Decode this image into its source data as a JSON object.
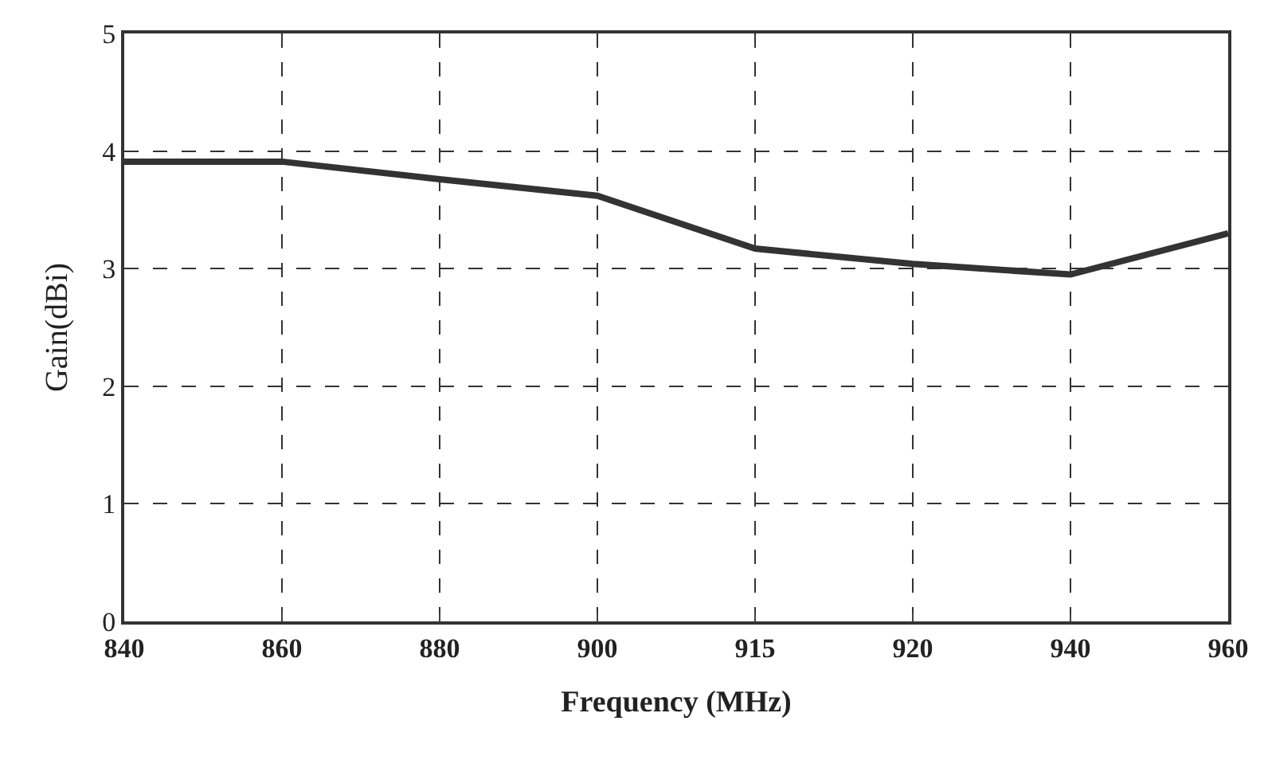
{
  "chart_data": {
    "type": "line",
    "xlabel": "Frequency (MHz)",
    "ylabel": "Gain(dBi)",
    "categories": [
      "840",
      "860",
      "880",
      "900",
      "915",
      "920",
      "940",
      "960"
    ],
    "series": [
      {
        "color": "#333333",
        "values": [
          3.91,
          3.91,
          3.76,
          3.62,
          3.17,
          3.04,
          2.95,
          3.3
        ]
      }
    ],
    "ylim": [
      0,
      5
    ],
    "yticks": [
      0,
      1,
      2,
      3,
      4,
      5
    ],
    "grid": true,
    "marker": "none",
    "line_style": "solid"
  }
}
